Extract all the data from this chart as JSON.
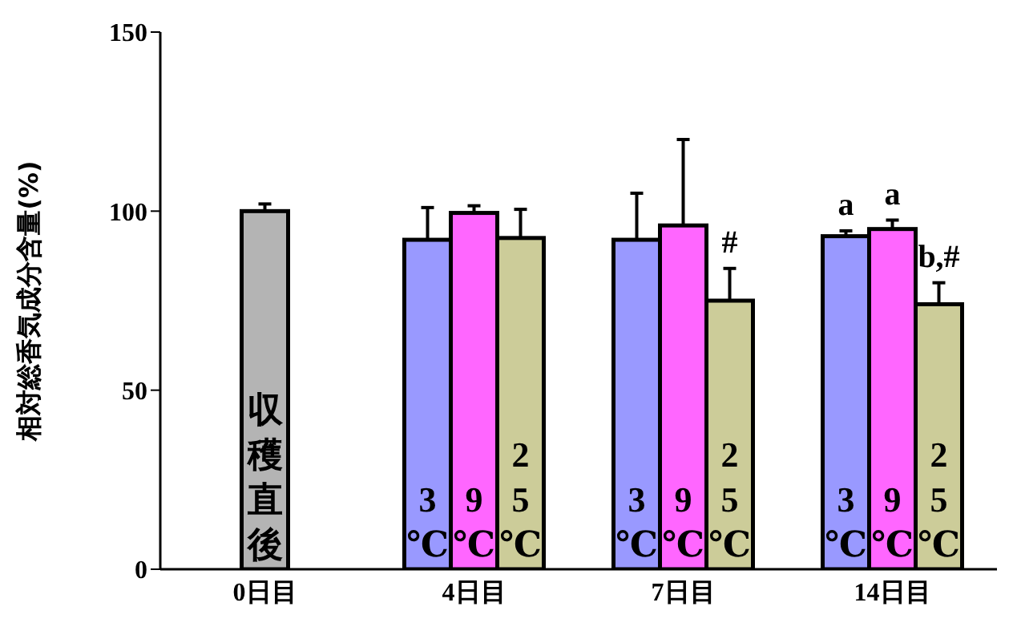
{
  "chart_data": {
    "type": "bar",
    "ylabel": "相対総香気成分含量(%)",
    "categories": [
      "0日目",
      "4日目",
      "7日目",
      "14日目"
    ],
    "ylim": [
      0,
      150
    ],
    "yticks": [
      0,
      50,
      100,
      150
    ],
    "series": [
      {
        "name": "収穫直後",
        "color": "#b4b4b4",
        "values": [
          100,
          null,
          null,
          null
        ],
        "errors": [
          [
            100,
            102
          ],
          null,
          null,
          null
        ]
      },
      {
        "name": "3℃",
        "color": "#9999ff",
        "values": [
          null,
          92,
          92,
          93
        ],
        "errors": [
          null,
          [
            92,
            101
          ],
          [
            92,
            105
          ],
          [
            93,
            94.5
          ]
        ],
        "value_labels": [
          null,
          null,
          null,
          "a"
        ]
      },
      {
        "name": "9℃",
        "color": "#ff66ff",
        "values": [
          null,
          99.5,
          96,
          95
        ],
        "errors": [
          null,
          [
            99.5,
            101.5
          ],
          [
            96,
            120
          ],
          [
            95,
            97.5
          ]
        ],
        "value_labels": [
          null,
          null,
          null,
          "a"
        ]
      },
      {
        "name": "25℃",
        "color": "#cccc99",
        "values": [
          null,
          92.5,
          75,
          74
        ],
        "errors": [
          null,
          [
            92.5,
            100.5
          ],
          [
            75,
            84
          ],
          [
            74,
            80
          ]
        ],
        "value_labels": [
          null,
          null,
          "#",
          "b,#"
        ]
      }
    ]
  }
}
